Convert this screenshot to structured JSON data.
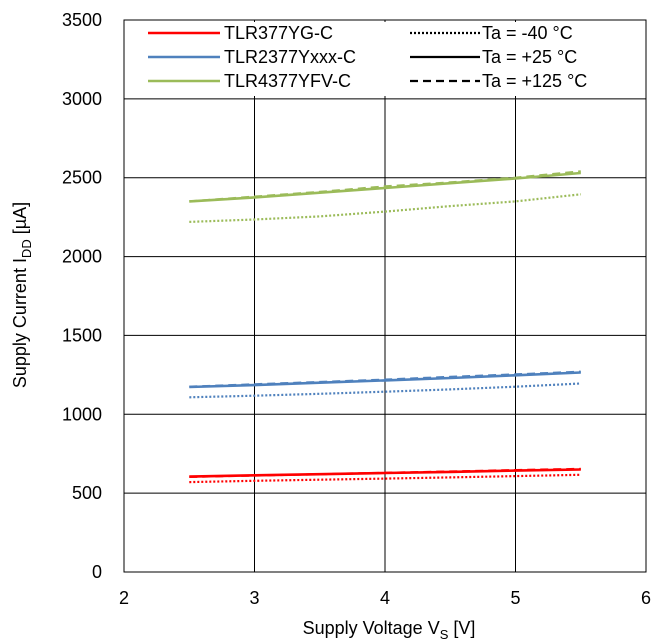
{
  "chart_data": {
    "type": "line",
    "title": "",
    "xlabel": "Supply Voltage  V",
    "xlabel_sub": "S",
    "xlabel_unit": " [V]",
    "ylabel": "Supply Current  I",
    "ylabel_sub": "DD",
    "ylabel_unit": " [µA]",
    "xlim": [
      2,
      6
    ],
    "ylim": [
      0,
      3500
    ],
    "xticks": [
      2,
      3,
      4,
      5,
      6
    ],
    "yticks": [
      0,
      500,
      1000,
      1500,
      2000,
      2500,
      3000,
      3500
    ],
    "grid": true,
    "legend_position": "top",
    "colors": {
      "TLR377YG-C": "#ff0000",
      "TLR2377Yxxx-C": "#4f81bd",
      "TLR4377YFV-C": "#9bbb59",
      "temperature_key": "#000000"
    },
    "legend": {
      "devices": [
        "TLR377YG-C",
        "TLR2377Yxxx-C",
        "TLR4377YFV-C"
      ],
      "temperatures": [
        {
          "label": "Ta = -40 °C",
          "style": "dotted"
        },
        {
          "label": "Ta = +25 °C",
          "style": "solid"
        },
        {
          "label": "Ta = +125 °C",
          "style": "dashed"
        }
      ]
    },
    "series": [
      {
        "device": "TLR377YG-C",
        "temp": "Ta = -40 °C",
        "style": "dotted",
        "x": [
          2.5,
          3.0,
          3.5,
          4.0,
          4.5,
          5.0,
          5.5
        ],
        "y": [
          570,
          578,
          585,
          592,
          600,
          608,
          616
        ]
      },
      {
        "device": "TLR377YG-C",
        "temp": "Ta = +25 °C",
        "style": "solid",
        "x": [
          2.5,
          3.0,
          3.5,
          4.0,
          4.5,
          5.0,
          5.5
        ],
        "y": [
          605,
          613,
          620,
          628,
          635,
          643,
          650
        ]
      },
      {
        "device": "TLR377YG-C",
        "temp": "Ta = +125 °C",
        "style": "dashed",
        "x": [
          2.5,
          3.0,
          3.5,
          4.0,
          4.5,
          5.0,
          5.5
        ],
        "y": [
          603,
          612,
          620,
          629,
          637,
          646,
          654
        ]
      },
      {
        "device": "TLR2377Yxxx-C",
        "temp": "Ta = -40 °C",
        "style": "dotted",
        "x": [
          2.5,
          3.0,
          3.5,
          4.0,
          4.5,
          5.0,
          5.5
        ],
        "y": [
          1108,
          1118,
          1130,
          1143,
          1158,
          1175,
          1195
        ]
      },
      {
        "device": "TLR2377Yxxx-C",
        "temp": "Ta = +25 °C",
        "style": "solid",
        "x": [
          2.5,
          3.0,
          3.5,
          4.0,
          4.5,
          5.0,
          5.5
        ],
        "y": [
          1173,
          1185,
          1200,
          1215,
          1230,
          1247,
          1265
        ]
      },
      {
        "device": "TLR2377Yxxx-C",
        "temp": "Ta = +125 °C",
        "style": "dashed",
        "x": [
          2.5,
          3.0,
          3.5,
          4.0,
          4.5,
          5.0,
          5.5
        ],
        "y": [
          1175,
          1190,
          1205,
          1220,
          1237,
          1253,
          1270
        ]
      },
      {
        "device": "TLR4377YFV-C",
        "temp": "Ta = -40 °C",
        "style": "dotted",
        "x": [
          2.5,
          3.0,
          3.5,
          4.0,
          4.5,
          5.0,
          5.5
        ],
        "y": [
          2220,
          2235,
          2255,
          2285,
          2320,
          2350,
          2395
        ]
      },
      {
        "device": "TLR4377YFV-C",
        "temp": "Ta = +25 °C",
        "style": "solid",
        "x": [
          2.5,
          3.0,
          3.5,
          4.0,
          4.5,
          5.0,
          5.5
        ],
        "y": [
          2350,
          2375,
          2405,
          2435,
          2465,
          2495,
          2530
        ]
      },
      {
        "device": "TLR4377YFV-C",
        "temp": "Ta = +125 °C",
        "style": "dashed",
        "x": [
          2.5,
          3.0,
          3.5,
          4.0,
          4.5,
          5.0,
          5.5
        ],
        "y": [
          2350,
          2380,
          2410,
          2445,
          2470,
          2500,
          2540
        ]
      }
    ]
  }
}
